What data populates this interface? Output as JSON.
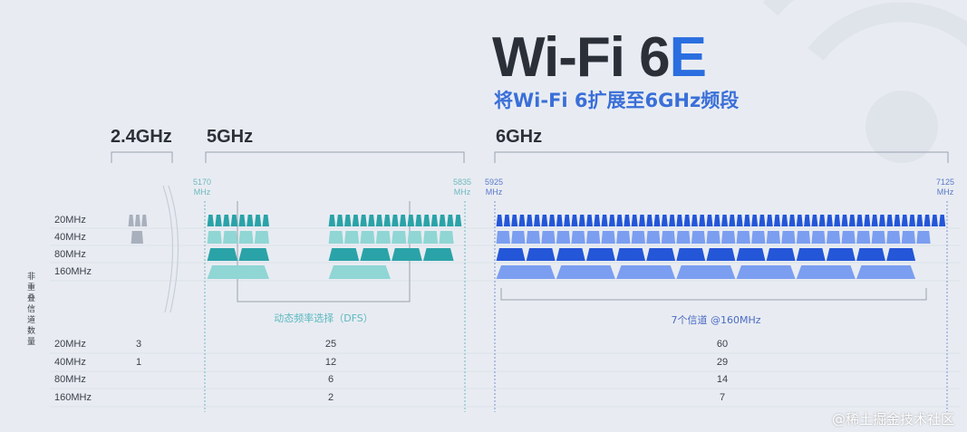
{
  "title": {
    "main": "Wi-Fi 6",
    "accent": "E",
    "subtitle": "将Wi-Fi 6扩展至6GHz频段"
  },
  "bands": [
    {
      "label": "2.4GHz"
    },
    {
      "label": "5GHz",
      "start": "5170",
      "end": "5835",
      "unit": "MHz"
    },
    {
      "label": "6GHz",
      "start": "5925",
      "end": "7125",
      "unit": "MHz"
    }
  ],
  "row_labels": [
    "20MHz",
    "40MHz",
    "80MHz",
    "160MHz"
  ],
  "vertical_label": "非重叠信道数量",
  "dfs_note": "动态频率选择（DFS）",
  "six_ghz_note": "7个信道 @160MHz",
  "channel_counts": {
    "ghz24": [
      "3",
      "1",
      "",
      ""
    ],
    "ghz5": [
      "25",
      "12",
      "6",
      "2"
    ],
    "ghz6": [
      "60",
      "29",
      "14",
      "7"
    ]
  },
  "channel_blocks": {
    "ghz24": [
      [
        3
      ],
      [
        1
      ],
      [],
      []
    ],
    "ghz5": [
      [
        8,
        17
      ],
      [
        4,
        8
      ],
      [
        2,
        4
      ],
      [
        1,
        1
      ]
    ],
    "ghz6": [
      [
        60
      ],
      [
        29
      ],
      [
        14
      ],
      [
        7
      ]
    ]
  },
  "colors": {
    "ghz24": "#a9b0bd",
    "ghz5_dark": "#2aa3a8",
    "ghz5_light": "#8fd6d4",
    "ghz6_dark": "#2456d8",
    "ghz6_light": "#7b9ef0",
    "accent": "#2a6ee0"
  },
  "watermark": "@稀土掘金技术社区"
}
